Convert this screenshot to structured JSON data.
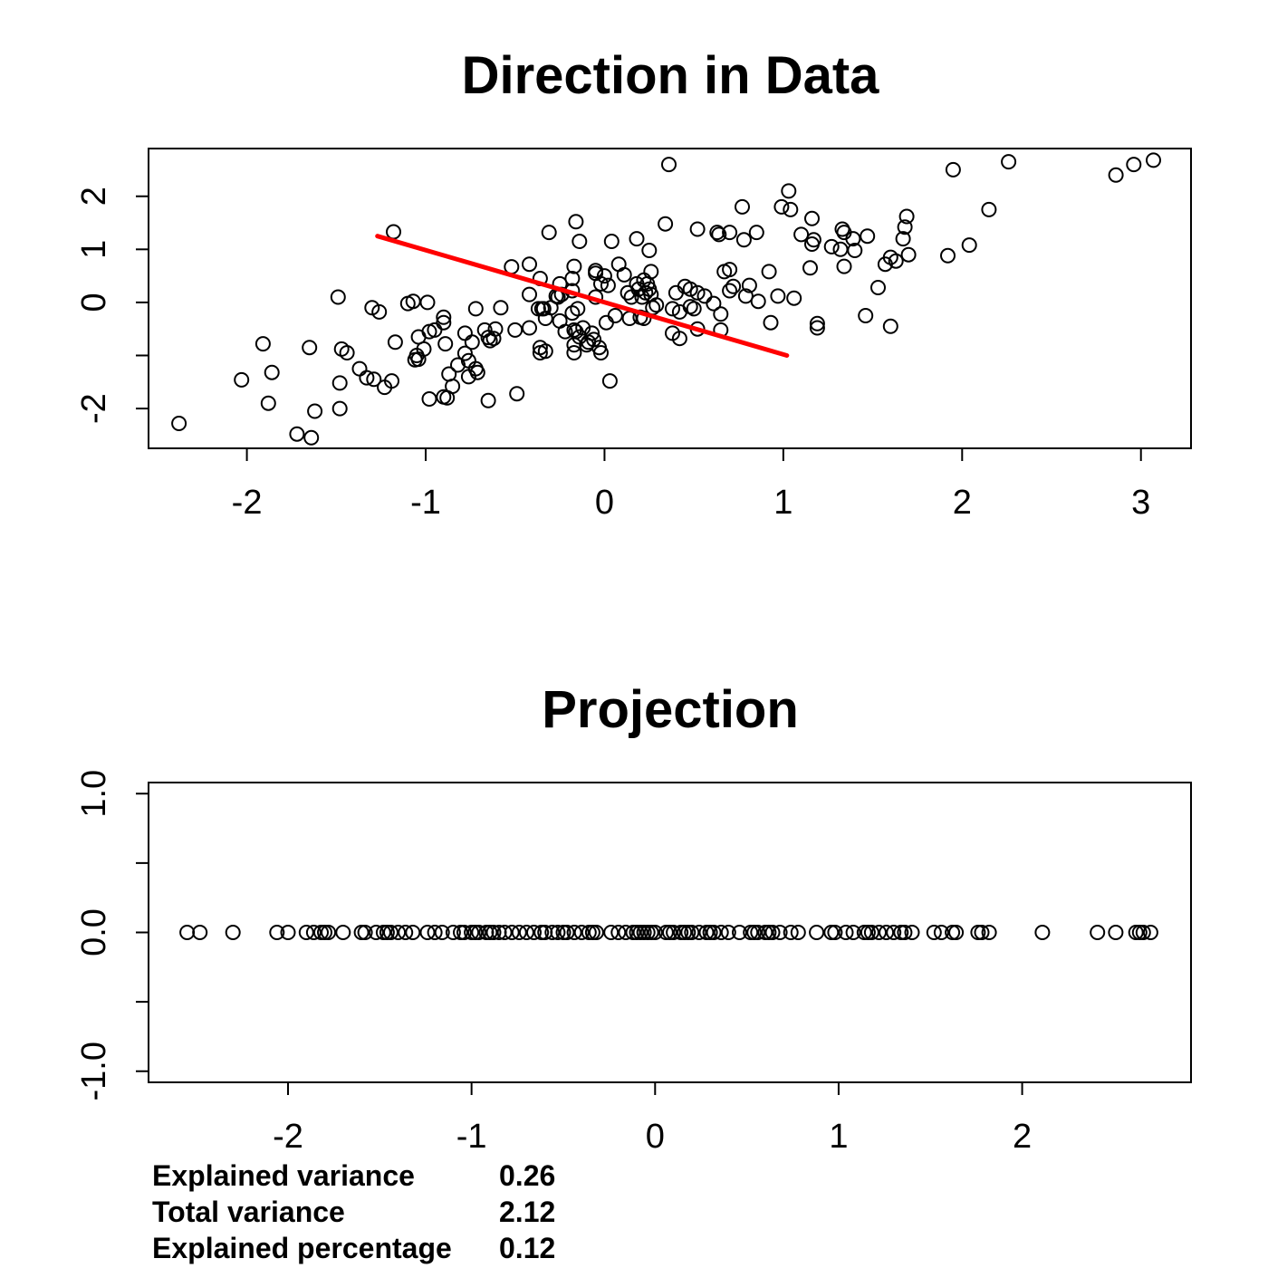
{
  "chart_data": [
    {
      "type": "scatter",
      "title": "Direction in Data",
      "xlabel": "",
      "ylabel": "",
      "xlim": [
        -2.55,
        3.28
      ],
      "ylim": [
        -2.75,
        2.9
      ],
      "x_ticks": [
        -2,
        -1,
        0,
        1,
        2,
        3
      ],
      "y_ticks": [
        -2,
        -1,
        0,
        1,
        2
      ],
      "y_tick_labels": [
        "-2",
        "",
        "0",
        "1",
        "2"
      ],
      "grid": false,
      "series": [
        {
          "marker": "open-circle",
          "color": "#000000",
          "points": [
            [
              -2.38,
              -2.28
            ],
            [
              -2.03,
              -1.46
            ],
            [
              -1.91,
              -0.78
            ],
            [
              -1.88,
              -1.9
            ],
            [
              -1.86,
              -1.32
            ],
            [
              -1.72,
              -2.48
            ],
            [
              -1.64,
              -2.55
            ],
            [
              -1.65,
              -0.85
            ],
            [
              -1.62,
              -2.05
            ],
            [
              -1.49,
              0.1
            ],
            [
              -1.47,
              -0.88
            ],
            [
              -1.48,
              -1.52
            ],
            [
              -1.48,
              -2.0
            ],
            [
              -1.44,
              -0.95
            ],
            [
              -1.37,
              -1.25
            ],
            [
              -1.33,
              -1.42
            ],
            [
              -1.29,
              -1.45
            ],
            [
              -1.3,
              -0.1
            ],
            [
              -1.26,
              -0.18
            ],
            [
              -1.23,
              -1.6
            ],
            [
              -1.19,
              -1.48
            ],
            [
              -1.18,
              1.33
            ],
            [
              -1.17,
              -0.75
            ],
            [
              -1.1,
              -0.02
            ],
            [
              -1.07,
              0.02
            ],
            [
              -1.06,
              -1.08
            ],
            [
              -1.05,
              -1.0
            ],
            [
              -1.04,
              -1.07
            ],
            [
              -1.04,
              -0.65
            ],
            [
              -1.01,
              -0.88
            ],
            [
              -0.99,
              0.0
            ],
            [
              -0.98,
              -1.82
            ],
            [
              -0.98,
              -0.55
            ],
            [
              -0.95,
              -0.52
            ],
            [
              -0.9,
              -1.78
            ],
            [
              -0.9,
              -0.38
            ],
            [
              -0.9,
              -0.28
            ],
            [
              -0.89,
              -0.78
            ],
            [
              -0.88,
              -1.8
            ],
            [
              -0.87,
              -1.35
            ],
            [
              -0.85,
              -1.58
            ],
            [
              -0.82,
              -1.18
            ],
            [
              -0.78,
              -0.96
            ],
            [
              -0.78,
              -0.58
            ],
            [
              -0.76,
              -1.1
            ],
            [
              -0.76,
              -1.4
            ],
            [
              -0.74,
              -0.75
            ],
            [
              -0.72,
              -1.25
            ],
            [
              -0.71,
              -1.32
            ],
            [
              -0.72,
              -0.12
            ],
            [
              -0.67,
              -0.52
            ],
            [
              -0.65,
              -0.66
            ],
            [
              -0.65,
              -1.85
            ],
            [
              -0.64,
              -0.72
            ],
            [
              -0.62,
              -0.68
            ],
            [
              -0.61,
              -0.5
            ],
            [
              -0.58,
              -0.1
            ],
            [
              -0.52,
              0.67
            ],
            [
              -0.49,
              -1.72
            ],
            [
              -0.5,
              -0.52
            ],
            [
              -0.42,
              0.72
            ],
            [
              -0.42,
              -0.48
            ],
            [
              -0.42,
              0.15
            ],
            [
              -0.37,
              -0.12
            ],
            [
              -0.36,
              0.45
            ],
            [
              -0.36,
              -0.85
            ],
            [
              -0.36,
              -0.95
            ],
            [
              -0.35,
              -0.12
            ],
            [
              -0.34,
              -0.12
            ],
            [
              -0.33,
              -0.3
            ],
            [
              -0.33,
              -0.92
            ],
            [
              -0.31,
              1.32
            ],
            [
              -0.3,
              -0.1
            ],
            [
              -0.27,
              0.12
            ],
            [
              -0.26,
              0.1
            ],
            [
              -0.25,
              0.35
            ],
            [
              -0.25,
              -0.35
            ],
            [
              -0.24,
              0.15
            ],
            [
              -0.22,
              -0.55
            ],
            [
              -0.18,
              0.22
            ],
            [
              -0.18,
              -0.2
            ],
            [
              -0.18,
              0.45
            ],
            [
              -0.17,
              -0.8
            ],
            [
              -0.17,
              0.68
            ],
            [
              -0.17,
              -0.52
            ],
            [
              -0.17,
              -0.95
            ],
            [
              -0.16,
              1.52
            ],
            [
              -0.16,
              -0.55
            ],
            [
              -0.15,
              -0.12
            ],
            [
              -0.14,
              -0.65
            ],
            [
              -0.14,
              1.15
            ],
            [
              -0.12,
              -0.48
            ],
            [
              -0.1,
              -0.8
            ],
            [
              -0.09,
              -0.75
            ],
            [
              -0.07,
              -0.58
            ],
            [
              -0.06,
              -0.7
            ],
            [
              -0.05,
              0.1
            ],
            [
              -0.05,
              0.55
            ],
            [
              -0.05,
              0.6
            ],
            [
              -0.03,
              -0.85
            ],
            [
              -0.02,
              -0.95
            ],
            [
              -0.02,
              0.35
            ],
            [
              0.0,
              0.5
            ],
            [
              0.01,
              -0.38
            ],
            [
              0.02,
              0.32
            ],
            [
              0.03,
              -1.48
            ],
            [
              0.04,
              1.15
            ],
            [
              0.06,
              -0.25
            ],
            [
              0.08,
              0.72
            ],
            [
              0.11,
              0.52
            ],
            [
              0.13,
              0.18
            ],
            [
              0.14,
              -0.3
            ],
            [
              0.15,
              0.1
            ],
            [
              0.18,
              1.2
            ],
            [
              0.18,
              0.35
            ],
            [
              0.19,
              0.25
            ],
            [
              0.2,
              -0.28
            ],
            [
              0.21,
              0.1
            ],
            [
              0.22,
              0.42
            ],
            [
              0.22,
              -0.3
            ],
            [
              0.23,
              0.18
            ],
            [
              0.24,
              0.35
            ],
            [
              0.25,
              0.25
            ],
            [
              0.25,
              0.98
            ],
            [
              0.26,
              0.15
            ],
            [
              0.26,
              0.58
            ],
            [
              0.27,
              -0.1
            ],
            [
              0.29,
              -0.05
            ],
            [
              0.34,
              1.48
            ],
            [
              0.36,
              2.6
            ],
            [
              0.38,
              -0.12
            ],
            [
              0.38,
              -0.58
            ],
            [
              0.4,
              0.18
            ],
            [
              0.42,
              -0.18
            ],
            [
              0.42,
              -0.68
            ],
            [
              0.45,
              0.3
            ],
            [
              0.48,
              0.25
            ],
            [
              0.48,
              -0.08
            ],
            [
              0.5,
              -0.12
            ],
            [
              0.52,
              1.38
            ],
            [
              0.52,
              0.18
            ],
            [
              0.52,
              -0.5
            ],
            [
              0.56,
              0.12
            ],
            [
              0.61,
              -0.02
            ],
            [
              0.63,
              1.32
            ],
            [
              0.64,
              1.28
            ],
            [
              0.65,
              -0.22
            ],
            [
              0.65,
              -0.52
            ],
            [
              0.67,
              0.58
            ],
            [
              0.7,
              0.62
            ],
            [
              0.7,
              1.32
            ],
            [
              0.7,
              0.22
            ],
            [
              0.72,
              0.3
            ],
            [
              0.77,
              1.8
            ],
            [
              0.78,
              1.18
            ],
            [
              0.79,
              0.12
            ],
            [
              0.81,
              0.32
            ],
            [
              0.85,
              1.32
            ],
            [
              0.86,
              0.02
            ],
            [
              0.92,
              0.58
            ],
            [
              0.93,
              -0.38
            ],
            [
              0.97,
              0.12
            ],
            [
              0.99,
              1.8
            ],
            [
              1.03,
              2.1
            ],
            [
              1.04,
              1.75
            ],
            [
              1.06,
              0.08
            ],
            [
              1.1,
              1.28
            ],
            [
              1.15,
              0.65
            ],
            [
              1.16,
              1.1
            ],
            [
              1.16,
              1.58
            ],
            [
              1.17,
              1.18
            ],
            [
              1.19,
              -0.4
            ],
            [
              1.19,
              -0.48
            ],
            [
              1.27,
              1.05
            ],
            [
              1.32,
              1.0
            ],
            [
              1.33,
              1.38
            ],
            [
              1.34,
              0.68
            ],
            [
              1.34,
              1.32
            ],
            [
              1.39,
              1.2
            ],
            [
              1.4,
              0.98
            ],
            [
              1.46,
              -0.25
            ],
            [
              1.47,
              1.25
            ],
            [
              1.53,
              0.28
            ],
            [
              1.57,
              0.72
            ],
            [
              1.6,
              0.85
            ],
            [
              1.6,
              -0.45
            ],
            [
              1.63,
              0.78
            ],
            [
              1.67,
              1.2
            ],
            [
              1.68,
              1.42
            ],
            [
              1.69,
              1.62
            ],
            [
              1.7,
              0.9
            ],
            [
              1.92,
              0.88
            ],
            [
              1.95,
              2.5
            ],
            [
              2.04,
              1.08
            ],
            [
              2.15,
              1.75
            ],
            [
              2.26,
              2.65
            ],
            [
              2.86,
              2.4
            ],
            [
              2.96,
              2.6
            ],
            [
              3.07,
              2.68
            ]
          ]
        }
      ],
      "direction_line": {
        "color": "#ff0000",
        "from": [
          -1.27,
          1.25
        ],
        "to": [
          1.02,
          -1.0
        ]
      }
    },
    {
      "type": "scatter",
      "title": "Projection",
      "xlabel": "",
      "ylabel": "",
      "xlim": [
        -2.76,
        2.92
      ],
      "ylim": [
        -1.08,
        1.08
      ],
      "x_ticks": [
        -2,
        -1,
        0,
        1,
        2
      ],
      "y_ticks": [
        -1.0,
        -0.5,
        0.0,
        0.5,
        1.0
      ],
      "y_tick_labels": [
        "-1.0",
        "",
        "0.0",
        "",
        "1.0"
      ],
      "grid": false,
      "series": [
        {
          "marker": "open-circle",
          "color": "#000000",
          "y_value": 0.0,
          "x": [
            -2.55,
            -2.48,
            -2.3,
            -2.06,
            -2.0,
            -1.9,
            -1.86,
            -1.82,
            -1.8,
            -1.78,
            -1.7,
            -1.6,
            -1.58,
            -1.52,
            -1.48,
            -1.46,
            -1.44,
            -1.4,
            -1.36,
            -1.32,
            -1.24,
            -1.2,
            -1.16,
            -1.1,
            -1.06,
            -1.04,
            -1.0,
            -0.98,
            -0.96,
            -0.92,
            -0.9,
            -0.88,
            -0.85,
            -0.82,
            -0.78,
            -0.74,
            -0.7,
            -0.66,
            -0.62,
            -0.6,
            -0.56,
            -0.53,
            -0.5,
            -0.48,
            -0.44,
            -0.4,
            -0.36,
            -0.34,
            -0.32,
            -0.24,
            -0.2,
            -0.16,
            -0.12,
            -0.1,
            -0.08,
            -0.06,
            -0.04,
            -0.02,
            0.0,
            0.06,
            0.08,
            0.1,
            0.14,
            0.16,
            0.18,
            0.2,
            0.24,
            0.28,
            0.3,
            0.32,
            0.36,
            0.4,
            0.46,
            0.52,
            0.54,
            0.56,
            0.6,
            0.62,
            0.64,
            0.68,
            0.74,
            0.78,
            0.88,
            0.96,
            0.98,
            1.04,
            1.08,
            1.14,
            1.16,
            1.18,
            1.22,
            1.26,
            1.3,
            1.34,
            1.36,
            1.4,
            1.52,
            1.56,
            1.62,
            1.64,
            1.76,
            1.78,
            1.82,
            2.11,
            2.41,
            2.51,
            2.62,
            2.64,
            2.66,
            2.7
          ]
        }
      ]
    }
  ],
  "stats": [
    {
      "label": "Explained variance",
      "value": "0.26"
    },
    {
      "label": "Total variance",
      "value": "2.12"
    },
    {
      "label": "Explained percentage",
      "value": "0.12"
    }
  ]
}
